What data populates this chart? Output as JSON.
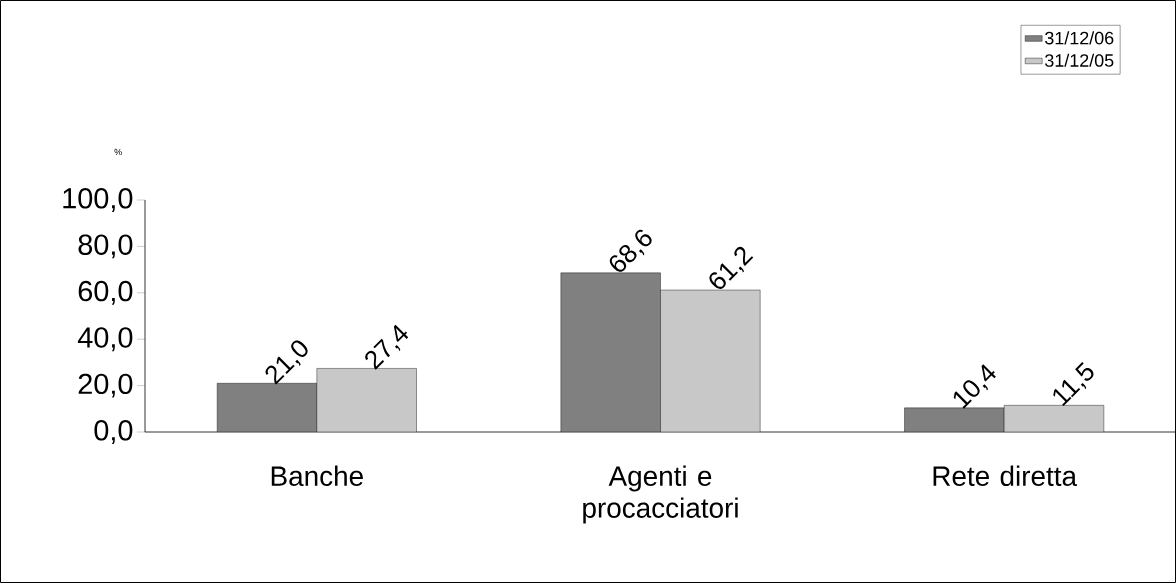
{
  "chart_data": {
    "type": "bar",
    "ylabel": "%",
    "categories": [
      "Banche",
      "Agenti e procacciatori",
      "Rete diretta"
    ],
    "series": [
      {
        "name": "31/12/06",
        "color": "#808080",
        "values": [
          21.0,
          68.6,
          10.4
        ],
        "value_labels": [
          "21,0",
          "68,6",
          "10,4"
        ]
      },
      {
        "name": "31/12/05",
        "color": "#c8c8c8",
        "values": [
          27.4,
          61.2,
          11.5
        ],
        "value_labels": [
          "27,4",
          "61,2",
          "11,5"
        ]
      }
    ],
    "ylim": [
      0,
      100
    ],
    "yticks": [
      {
        "value": 0,
        "label": "0,0"
      },
      {
        "value": 20,
        "label": "20,0"
      },
      {
        "value": 40,
        "label": "40,0"
      },
      {
        "value": 60,
        "label": "60,0"
      },
      {
        "value": 80,
        "label": "80,0"
      },
      {
        "value": 100,
        "label": "100,0"
      }
    ],
    "grid": false,
    "legend": "top right"
  }
}
